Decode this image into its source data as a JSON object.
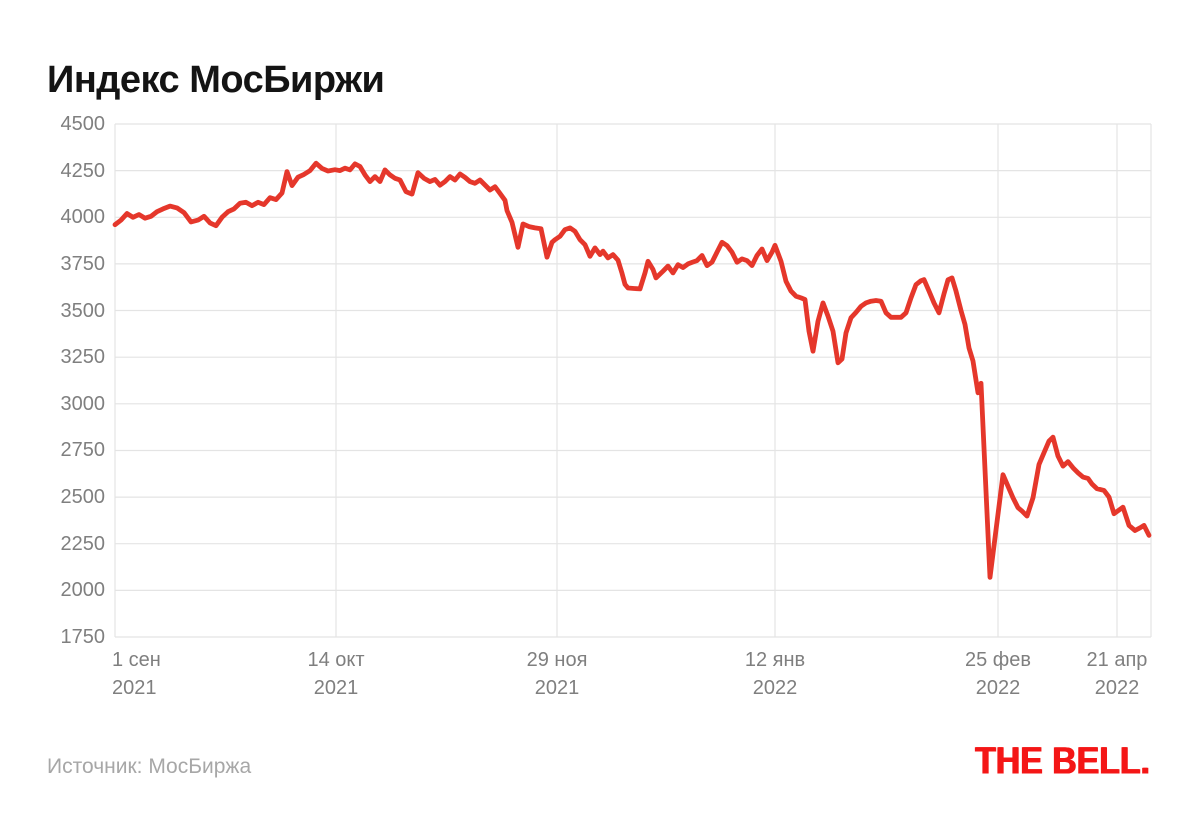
{
  "title": "Индекс МосБиржи",
  "source": "Источник: МосБиржа",
  "logo": "THE BELL.",
  "colors": {
    "title": "#141414",
    "axis_text": "#7f7f7f",
    "grid": "#e4e4e4",
    "line": "#e5372b",
    "source_text": "#a7a7a7",
    "logo_red": "#f41616",
    "background": "#ffffff"
  },
  "chart_data": {
    "type": "line",
    "title": "Индекс МосБиржи",
    "xlabel": "",
    "ylabel": "",
    "ylim": [
      1750,
      4500
    ],
    "y_ticks": [
      4500,
      4250,
      4000,
      3750,
      3500,
      3250,
      3000,
      2750,
      2500,
      2250,
      2000,
      1750
    ],
    "x_domain": [
      0,
      1036
    ],
    "x_ticks": [
      {
        "label": "1 сен",
        "year": "2021",
        "pos": 0,
        "anchor": "start"
      },
      {
        "label": "14 окт",
        "year": "2021",
        "pos": 221,
        "anchor": "middle"
      },
      {
        "label": "29 ноя",
        "year": "2021",
        "pos": 442,
        "anchor": "middle"
      },
      {
        "label": "12 янв",
        "year": "2022",
        "pos": 660,
        "anchor": "middle"
      },
      {
        "label": "25 фев",
        "year": "2022",
        "pos": 883,
        "anchor": "middle"
      },
      {
        "label": "21 апр",
        "year": "2022",
        "pos": 1002,
        "anchor": "middle"
      }
    ],
    "grid": true,
    "legend": "none",
    "line_color": "#e5372b",
    "grid_color": "#e4e4e4",
    "tick_color": "#7f7f7f",
    "source": "Источник: МосБиржа",
    "series": [
      {
        "name": "Индекс МосБиржи",
        "points": [
          [
            0,
            3960
          ],
          [
            6,
            3985
          ],
          [
            12,
            4020
          ],
          [
            18,
            4000
          ],
          [
            24,
            4015
          ],
          [
            30,
            3995
          ],
          [
            36,
            4005
          ],
          [
            42,
            4030
          ],
          [
            48,
            4045
          ],
          [
            55,
            4060
          ],
          [
            62,
            4050
          ],
          [
            69,
            4025
          ],
          [
            76,
            3975
          ],
          [
            83,
            3985
          ],
          [
            89,
            4005
          ],
          [
            95,
            3970
          ],
          [
            101,
            3955
          ],
          [
            107,
            4000
          ],
          [
            113,
            4030
          ],
          [
            119,
            4045
          ],
          [
            125,
            4075
          ],
          [
            131,
            4080
          ],
          [
            137,
            4062
          ],
          [
            143,
            4080
          ],
          [
            149,
            4068
          ],
          [
            155,
            4105
          ],
          [
            161,
            4095
          ],
          [
            167,
            4130
          ],
          [
            172,
            4245
          ],
          [
            177,
            4170
          ],
          [
            183,
            4215
          ],
          [
            189,
            4230
          ],
          [
            195,
            4250
          ],
          [
            201,
            4290
          ],
          [
            207,
            4262
          ],
          [
            213,
            4248
          ],
          [
            220,
            4255
          ],
          [
            225,
            4250
          ],
          [
            230,
            4263
          ],
          [
            235,
            4254
          ],
          [
            240,
            4286
          ],
          [
            245,
            4272
          ],
          [
            250,
            4227
          ],
          [
            255,
            4191
          ],
          [
            260,
            4218
          ],
          [
            265,
            4191
          ],
          [
            270,
            4254
          ],
          [
            275,
            4227
          ],
          [
            280,
            4209
          ],
          [
            285,
            4200
          ],
          [
            291,
            4137
          ],
          [
            297,
            4124
          ],
          [
            303,
            4239
          ],
          [
            309,
            4209
          ],
          [
            315,
            4191
          ],
          [
            320,
            4203
          ],
          [
            325,
            4172
          ],
          [
            330,
            4191
          ],
          [
            335,
            4218
          ],
          [
            340,
            4200
          ],
          [
            345,
            4232
          ],
          [
            350,
            4214
          ],
          [
            355,
            4191
          ],
          [
            360,
            4182
          ],
          [
            365,
            4200
          ],
          [
            370,
            4173
          ],
          [
            375,
            4146
          ],
          [
            380,
            4164
          ],
          [
            385,
            4128
          ],
          [
            390,
            4091
          ],
          [
            392,
            4036
          ],
          [
            397,
            3973
          ],
          [
            403,
            3839
          ],
          [
            408,
            3964
          ],
          [
            414,
            3950
          ],
          [
            420,
            3943
          ],
          [
            426,
            3938
          ],
          [
            432,
            3786
          ],
          [
            437,
            3866
          ],
          [
            440,
            3880
          ],
          [
            445,
            3898
          ],
          [
            450,
            3934
          ],
          [
            455,
            3943
          ],
          [
            460,
            3925
          ],
          [
            465,
            3880
          ],
          [
            470,
            3853
          ],
          [
            475,
            3791
          ],
          [
            480,
            3836
          ],
          [
            485,
            3800
          ],
          [
            488,
            3818
          ],
          [
            493,
            3782
          ],
          [
            498,
            3800
          ],
          [
            503,
            3770
          ],
          [
            507,
            3700
          ],
          [
            510,
            3640
          ],
          [
            513,
            3621
          ],
          [
            519,
            3618
          ],
          [
            525,
            3616
          ],
          [
            530,
            3702
          ],
          [
            533,
            3764
          ],
          [
            538,
            3720
          ],
          [
            541,
            3675
          ],
          [
            548,
            3711
          ],
          [
            553,
            3738
          ],
          [
            558,
            3702
          ],
          [
            563,
            3746
          ],
          [
            568,
            3730
          ],
          [
            573,
            3750
          ],
          [
            578,
            3760
          ],
          [
            582,
            3768
          ],
          [
            587,
            3795
          ],
          [
            592,
            3741
          ],
          [
            597,
            3759
          ],
          [
            602,
            3813
          ],
          [
            607,
            3866
          ],
          [
            612,
            3848
          ],
          [
            617,
            3813
          ],
          [
            622,
            3759
          ],
          [
            627,
            3777
          ],
          [
            632,
            3768
          ],
          [
            637,
            3741
          ],
          [
            642,
            3795
          ],
          [
            647,
            3830
          ],
          [
            652,
            3768
          ],
          [
            657,
            3813
          ],
          [
            660,
            3850
          ],
          [
            666,
            3764
          ],
          [
            671,
            3657
          ],
          [
            676,
            3604
          ],
          [
            681,
            3577
          ],
          [
            686,
            3568
          ],
          [
            690,
            3559
          ],
          [
            694,
            3389
          ],
          [
            698,
            3282
          ],
          [
            703,
            3443
          ],
          [
            708,
            3541
          ],
          [
            713,
            3470
          ],
          [
            718,
            3389
          ],
          [
            723,
            3220
          ],
          [
            727,
            3240
          ],
          [
            731,
            3380
          ],
          [
            736,
            3461
          ],
          [
            741,
            3490
          ],
          [
            746,
            3523
          ],
          [
            751,
            3541
          ],
          [
            756,
            3550
          ],
          [
            761,
            3554
          ],
          [
            766,
            3550
          ],
          [
            771,
            3488
          ],
          [
            776,
            3464
          ],
          [
            781,
            3464
          ],
          [
            786,
            3464
          ],
          [
            791,
            3488
          ],
          [
            796,
            3568
          ],
          [
            801,
            3639
          ],
          [
            806,
            3660
          ],
          [
            809,
            3666
          ],
          [
            814,
            3604
          ],
          [
            819,
            3541
          ],
          [
            824,
            3488
          ],
          [
            829,
            3590
          ],
          [
            833,
            3665
          ],
          [
            837,
            3675
          ],
          [
            841,
            3604
          ],
          [
            846,
            3500
          ],
          [
            850,
            3425
          ],
          [
            854,
            3300
          ],
          [
            858,
            3229
          ],
          [
            863,
            3059
          ],
          [
            866,
            3110
          ],
          [
            875,
            2070
          ],
          [
            888,
            2620
          ],
          [
            898,
            2496
          ],
          [
            903,
            2443
          ],
          [
            907,
            2425
          ],
          [
            912,
            2398
          ],
          [
            918,
            2496
          ],
          [
            924,
            2675
          ],
          [
            929,
            2738
          ],
          [
            934,
            2800
          ],
          [
            938,
            2821
          ],
          [
            943,
            2720
          ],
          [
            948,
            2666
          ],
          [
            953,
            2690
          ],
          [
            958,
            2657
          ],
          [
            963,
            2630
          ],
          [
            968,
            2607
          ],
          [
            973,
            2600
          ],
          [
            977,
            2570
          ],
          [
            982,
            2545
          ],
          [
            989,
            2536
          ],
          [
            994,
            2500
          ],
          [
            999,
            2411
          ],
          [
            1004,
            2430
          ],
          [
            1008,
            2446
          ],
          [
            1014,
            2348
          ],
          [
            1020,
            2321
          ],
          [
            1025,
            2335
          ],
          [
            1029,
            2348
          ],
          [
            1034,
            2295
          ]
        ]
      }
    ]
  }
}
